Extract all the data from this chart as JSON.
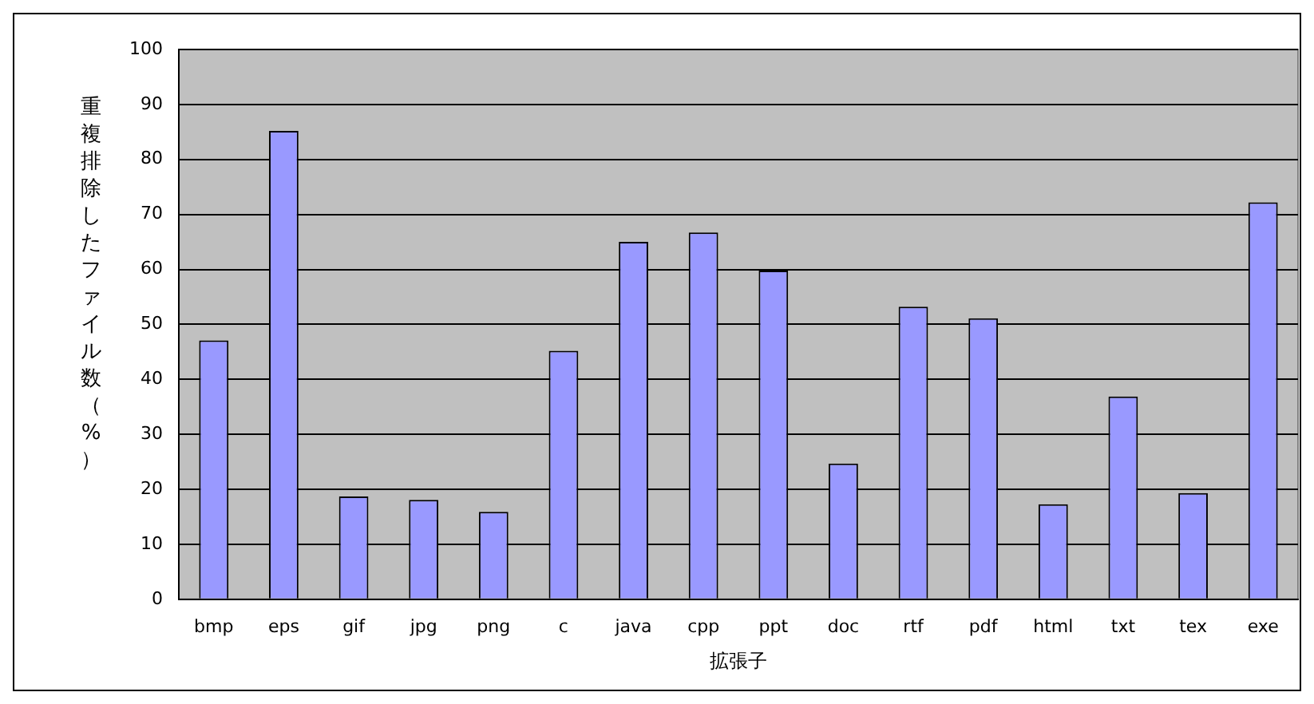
{
  "chart_data": {
    "type": "bar",
    "xlabel": "拡張子",
    "ylabel": "重複排除したファイル数（%）",
    "categories": [
      "bmp",
      "eps",
      "gif",
      "jpg",
      "png",
      "c",
      "java",
      "cpp",
      "ppt",
      "doc",
      "rtf",
      "pdf",
      "html",
      "txt",
      "tex",
      "exe"
    ],
    "values": [
      47.1,
      85.2,
      18.7,
      18.1,
      15.9,
      45.2,
      65.0,
      66.7,
      59.8,
      24.7,
      53.2,
      51.1,
      17.3,
      36.9,
      19.3,
      72.2
    ],
    "color": "#9999ff",
    "ylim": [
      0,
      100
    ],
    "yticks": [
      0,
      10,
      20,
      30,
      40,
      50,
      60,
      70,
      80,
      90,
      100
    ],
    "grid": "y",
    "legend": false
  }
}
